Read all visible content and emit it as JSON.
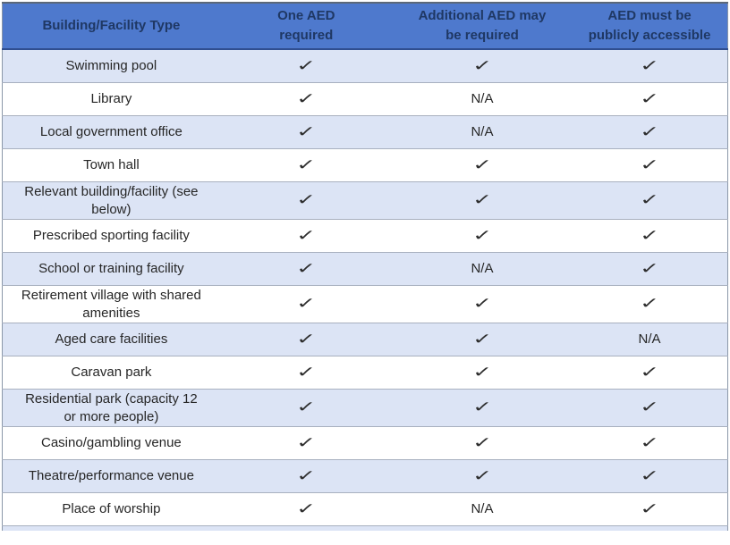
{
  "table": {
    "header": {
      "col1": "Building/Facility Type",
      "col2": "One AED required",
      "col3": "Additional AED may be required",
      "col4": "AED must be publicly accessible"
    },
    "rows": [
      {
        "label": "Swimming pool",
        "cells": [
          "✓",
          "✓",
          "✓"
        ]
      },
      {
        "label": "Library",
        "cells": [
          "✓",
          "N/A",
          "✓"
        ]
      },
      {
        "label": "Local government office",
        "cells": [
          "✓",
          "N/A",
          "✓"
        ]
      },
      {
        "label": "Town hall",
        "cells": [
          "✓",
          "✓",
          "✓"
        ]
      },
      {
        "label": "Relevant building/facility (see below)",
        "cells": [
          "✓",
          "✓",
          "✓"
        ]
      },
      {
        "label": "Prescribed sporting facility",
        "cells": [
          "✓",
          "✓",
          "✓"
        ]
      },
      {
        "label": "School or training facility",
        "cells": [
          "✓",
          "N/A",
          "✓"
        ]
      },
      {
        "label": "Retirement village with shared amenities",
        "cells": [
          "✓",
          "✓",
          "✓"
        ]
      },
      {
        "label": "Aged care facilities",
        "cells": [
          "✓",
          "✓",
          "N/A"
        ]
      },
      {
        "label": "Caravan park",
        "cells": [
          "✓",
          "✓",
          "✓"
        ]
      },
      {
        "label": "Residential park (capacity 12 or more people)",
        "cells": [
          "✓",
          "✓",
          "✓"
        ]
      },
      {
        "label": "Casino/gambling venue",
        "cells": [
          "✓",
          "✓",
          "✓"
        ]
      },
      {
        "label": "Theatre/performance venue",
        "cells": [
          "✓",
          "✓",
          "✓"
        ]
      },
      {
        "label": "Place of worship",
        "cells": [
          "✓",
          "N/A",
          "✓"
        ]
      }
    ]
  },
  "colors": {
    "header_bg": "#4e79cd",
    "header_text": "#1f3864",
    "header_separator": "#2f4e90",
    "row_alt_bg": "#dce4f5",
    "row_separator": "#a8b0bf",
    "body_text": "#262626",
    "outer_border": "#8b97a8",
    "outer_border_top": "#5c6878"
  }
}
